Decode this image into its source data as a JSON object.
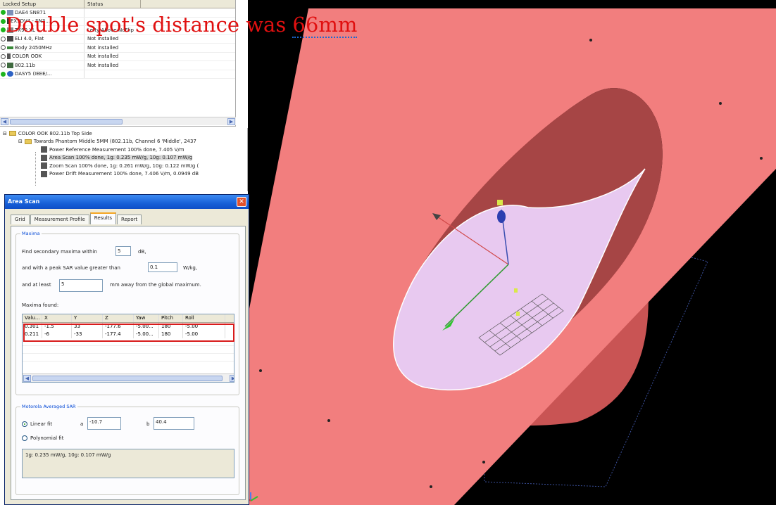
{
  "headline": {
    "text_a": "Double spot's distance was ",
    "text_b": "66mm"
  },
  "setup": {
    "columns": [
      "Locked Setup",
      "Status"
    ],
    "rows": [
      {
        "name": "DAE4 SN871",
        "status": "",
        "state": "green"
      },
      {
        "name": "EX3DV4 - SN3...",
        "status": "",
        "state": "green"
      },
      {
        "name": "TX90 XL",
        "status": "Lefty-Above-NoFlip",
        "state": "green"
      },
      {
        "name": "ELI 4.0, Flat",
        "status": "Not installed",
        "state": "empty"
      },
      {
        "name": "Body 2450MHz",
        "status": "Not installed",
        "state": "empty"
      },
      {
        "name": "COLOR OOK",
        "status": "Not installed",
        "state": "empty"
      },
      {
        "name": "802.11b",
        "status": "Not installed",
        "state": "empty"
      },
      {
        "name": "DASY5 (IEEE/...",
        "status": "",
        "state": "green"
      }
    ]
  },
  "tree": {
    "root": "COLOR OOK 802.11b  Top  Side",
    "child": "Towards Phantom Middle 5MM (802.11b, Channel 6 'Middle', 2437",
    "items": [
      "Power Reference Measurement 100% done, 7.405 V/m",
      "Area Scan 100% done, 1g: 0.235 mW/g, 10g: 0.107 mW/g",
      "Zoom Scan 100% done, 1g: 0.261 mW/g, 10g: 0.122 mW/g (",
      "Power Drift Measurement 100% done, 7.406 V/m, 0.0949 dB"
    ]
  },
  "dialog": {
    "title": "Area Scan",
    "tabs": [
      "Grid",
      "Measurement Profile",
      "Results",
      "Report"
    ],
    "active_tab": "Results",
    "maxima": {
      "group": "Maxima",
      "line1": "Find secondary maxima within",
      "within_value": "5",
      "unit1": "dB,",
      "line2": "and with a peak SAR value greater than",
      "peak_value": "0.1",
      "unit2": "W/kg,",
      "line3": "and at least",
      "dist_value": "5",
      "unit3": "mm away from the global maximum."
    },
    "found": {
      "label": "Maxima found:",
      "columns": [
        "Valu...",
        "X",
        "Y",
        "Z",
        "Yaw",
        "Pitch",
        "Roll"
      ],
      "rows": [
        [
          "0.301",
          "-1.5",
          "33",
          "-177.6",
          "-5.00...",
          "180",
          "-5.00"
        ],
        [
          "0.211",
          "-6",
          "-33",
          "-177.4",
          "-5.00...",
          "180",
          "-5.00"
        ]
      ]
    },
    "motorola": {
      "group": "Motorola Averaged SAR",
      "linear": "Linear fit",
      "poly": "Polynomial fit",
      "a_label": "a",
      "a_value": "-10.7",
      "b_label": "b",
      "b_value": "40.4",
      "result": "1g: 0.235 mW/g, 10g: 0.107 mW/g"
    }
  },
  "colors": {
    "phantom": "#f27e7e",
    "liquid": "#e8c9f0",
    "headline": "#e01010",
    "highlight": "#d81b1b"
  }
}
